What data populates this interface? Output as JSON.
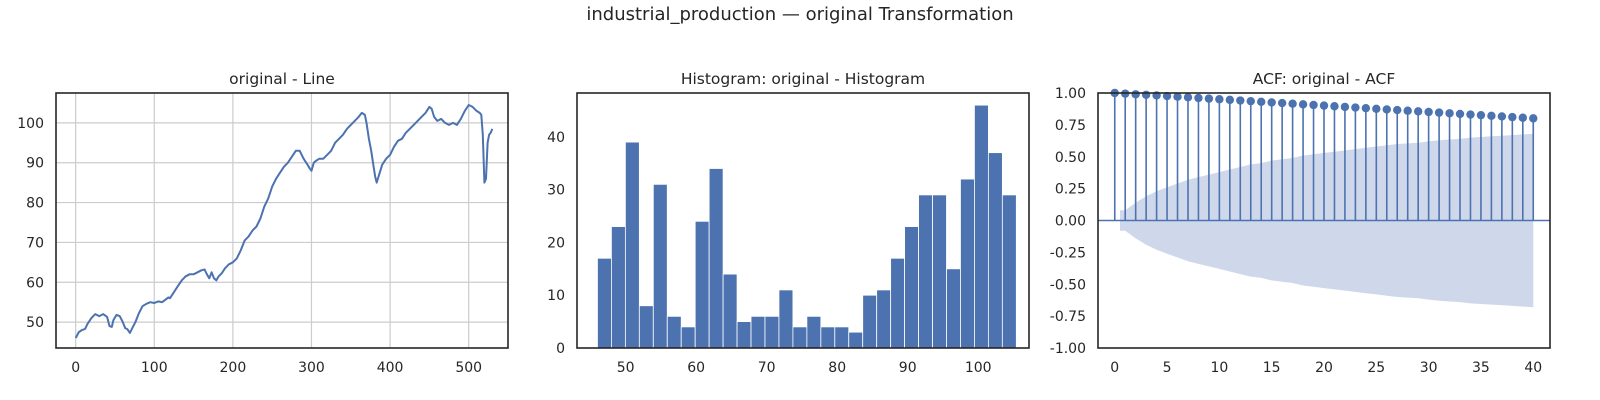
{
  "figure": {
    "suptitle": "industrial_production — original Transformation"
  },
  "colors": {
    "series": "#4c72b0",
    "band": "#cfd8ea",
    "grid": "#cccccc",
    "spine": "#262626"
  },
  "chart_data": [
    {
      "type": "line",
      "title": "original - Line",
      "xlabel": "",
      "ylabel": "",
      "xlim": [
        -25,
        550
      ],
      "ylim": [
        43.5,
        107.5
      ],
      "xticks": [
        0,
        100,
        200,
        300,
        400,
        500
      ],
      "yticks": [
        50,
        60,
        70,
        80,
        90,
        100
      ],
      "grid": true,
      "series": [
        {
          "points": [
            [
              0,
              46
            ],
            [
              4,
              47.5
            ],
            [
              8,
              48
            ],
            [
              12,
              48.3
            ],
            [
              15,
              49.5
            ],
            [
              20,
              51
            ],
            [
              25,
              52
            ],
            [
              30,
              51.5
            ],
            [
              35,
              52
            ],
            [
              40,
              51.3
            ],
            [
              43,
              49
            ],
            [
              46,
              48.8
            ],
            [
              48,
              50.5
            ],
            [
              52,
              51.8
            ],
            [
              56,
              51.5
            ],
            [
              60,
              50
            ],
            [
              63,
              48.5
            ],
            [
              66,
              48.2
            ],
            [
              69,
              47.3
            ],
            [
              72,
              48.5
            ],
            [
              76,
              50
            ],
            [
              80,
              52
            ],
            [
              85,
              54
            ],
            [
              90,
              54.6
            ],
            [
              95,
              55
            ],
            [
              100,
              54.8
            ],
            [
              105,
              55.2
            ],
            [
              110,
              55
            ],
            [
              114,
              55.6
            ],
            [
              118,
              56.2
            ],
            [
              120,
              56
            ],
            [
              125,
              57.5
            ],
            [
              130,
              59
            ],
            [
              135,
              60.5
            ],
            [
              140,
              61.5
            ],
            [
              145,
              62
            ],
            [
              150,
              62
            ],
            [
              155,
              62.5
            ],
            [
              160,
              63
            ],
            [
              164,
              63.2
            ],
            [
              167,
              62
            ],
            [
              170,
              61
            ],
            [
              173,
              62.5
            ],
            [
              176,
              61
            ],
            [
              179,
              60.5
            ],
            [
              182,
              61.5
            ],
            [
              186,
              62.3
            ],
            [
              190,
              63.5
            ],
            [
              195,
              64.5
            ],
            [
              200,
              65
            ],
            [
              205,
              66
            ],
            [
              210,
              68
            ],
            [
              215,
              70.5
            ],
            [
              220,
              71.5
            ],
            [
              225,
              73
            ],
            [
              230,
              74
            ],
            [
              235,
              76
            ],
            [
              240,
              79
            ],
            [
              245,
              81
            ],
            [
              250,
              84
            ],
            [
              255,
              86
            ],
            [
              260,
              87.5
            ],
            [
              265,
              89
            ],
            [
              270,
              90
            ],
            [
              275,
              91.5
            ],
            [
              280,
              93
            ],
            [
              285,
              93
            ],
            [
              290,
              91
            ],
            [
              295,
              89.5
            ],
            [
              298,
              88.5
            ],
            [
              300,
              88
            ],
            [
              303,
              90
            ],
            [
              306,
              90.5
            ],
            [
              310,
              91
            ],
            [
              315,
              91
            ],
            [
              320,
              92
            ],
            [
              325,
              93
            ],
            [
              330,
              95
            ],
            [
              335,
              96
            ],
            [
              340,
              97
            ],
            [
              345,
              98.5
            ],
            [
              350,
              99.5
            ],
            [
              355,
              100.5
            ],
            [
              360,
              101.5
            ],
            [
              364,
              102.5
            ],
            [
              368,
              102
            ],
            [
              370,
              100
            ],
            [
              373,
              96
            ],
            [
              376,
              93
            ],
            [
              379,
              89
            ],
            [
              381,
              86.5
            ],
            [
              383,
              85
            ],
            [
              386,
              87
            ],
            [
              390,
              89.5
            ],
            [
              395,
              91
            ],
            [
              400,
              92
            ],
            [
              405,
              94
            ],
            [
              410,
              95.5
            ],
            [
              415,
              96
            ],
            [
              420,
              97.5
            ],
            [
              425,
              98.5
            ],
            [
              430,
              99.5
            ],
            [
              435,
              100.5
            ],
            [
              440,
              101.5
            ],
            [
              445,
              102.5
            ],
            [
              450,
              104
            ],
            [
              453,
              103.5
            ],
            [
              456,
              101.5
            ],
            [
              460,
              100.5
            ],
            [
              465,
              101
            ],
            [
              470,
              100
            ],
            [
              475,
              99.5
            ],
            [
              480,
              100
            ],
            [
              485,
              99.5
            ],
            [
              490,
              101
            ],
            [
              495,
              103
            ],
            [
              500,
              104.5
            ],
            [
              505,
              104
            ],
            [
              510,
              103
            ],
            [
              514,
              102.5
            ],
            [
              516,
              102
            ],
            [
              518,
              97
            ],
            [
              520,
              85
            ],
            [
              522,
              86
            ],
            [
              524,
              95
            ],
            [
              526,
              97
            ],
            [
              528,
              97.5
            ],
            [
              530,
              98.5
            ]
          ]
        }
      ]
    },
    {
      "type": "bar",
      "title": "Histogram: original - Histogram",
      "xlabel": "",
      "ylabel": "",
      "xlim": [
        43.1,
        107.2
      ],
      "ylim": [
        0,
        48.3
      ],
      "xticks": [
        50,
        60,
        70,
        80,
        90,
        100
      ],
      "yticks": [
        0,
        10,
        20,
        30,
        40
      ],
      "grid": false,
      "bin_start": 46,
      "bin_width": 1.98,
      "values": [
        17,
        23,
        39,
        8,
        31,
        6,
        4,
        24,
        34,
        14,
        5,
        6,
        6,
        11,
        4,
        6,
        4,
        4,
        3,
        10,
        11,
        17,
        23,
        29,
        29,
        15,
        32,
        46,
        37,
        29
      ]
    },
    {
      "type": "scatter",
      "title": "ACF: original - ACF",
      "xlabel": "",
      "ylabel": "",
      "xlim": [
        -1.6,
        41.6
      ],
      "ylim": [
        -1.0,
        1.0
      ],
      "xticks": [
        0,
        5,
        10,
        15,
        20,
        25,
        30,
        35,
        40
      ],
      "yticks": [
        "-1.00",
        "-0.75",
        "-0.50",
        "-0.25",
        "0.00",
        "0.25",
        "0.50",
        "0.75",
        "1.00"
      ],
      "grid": false,
      "lags": [
        0,
        1,
        2,
        3,
        4,
        5,
        6,
        7,
        8,
        9,
        10,
        11,
        12,
        13,
        14,
        15,
        16,
        17,
        18,
        19,
        20,
        21,
        22,
        23,
        24,
        25,
        26,
        27,
        28,
        29,
        30,
        31,
        32,
        33,
        34,
        35,
        36,
        37,
        38,
        39,
        40
      ],
      "values": [
        1.0,
        0.995,
        0.99,
        0.986,
        0.981,
        0.976,
        0.971,
        0.966,
        0.961,
        0.956,
        0.951,
        0.946,
        0.941,
        0.936,
        0.931,
        0.926,
        0.921,
        0.916,
        0.911,
        0.906,
        0.901,
        0.896,
        0.891,
        0.886,
        0.881,
        0.876,
        0.871,
        0.866,
        0.861,
        0.856,
        0.851,
        0.846,
        0.841,
        0.836,
        0.831,
        0.826,
        0.821,
        0.816,
        0.811,
        0.806,
        0.801
      ],
      "confint_upper": [
        0.08,
        0.14,
        0.19,
        0.23,
        0.26,
        0.29,
        0.32,
        0.34,
        0.36,
        0.38,
        0.4,
        0.42,
        0.44,
        0.45,
        0.47,
        0.48,
        0.49,
        0.51,
        0.52,
        0.53,
        0.54,
        0.55,
        0.56,
        0.57,
        0.58,
        0.59,
        0.6,
        0.605,
        0.61,
        0.62,
        0.63,
        0.635,
        0.64,
        0.65,
        0.655,
        0.66,
        0.665,
        0.67,
        0.675,
        0.68
      ]
    }
  ]
}
